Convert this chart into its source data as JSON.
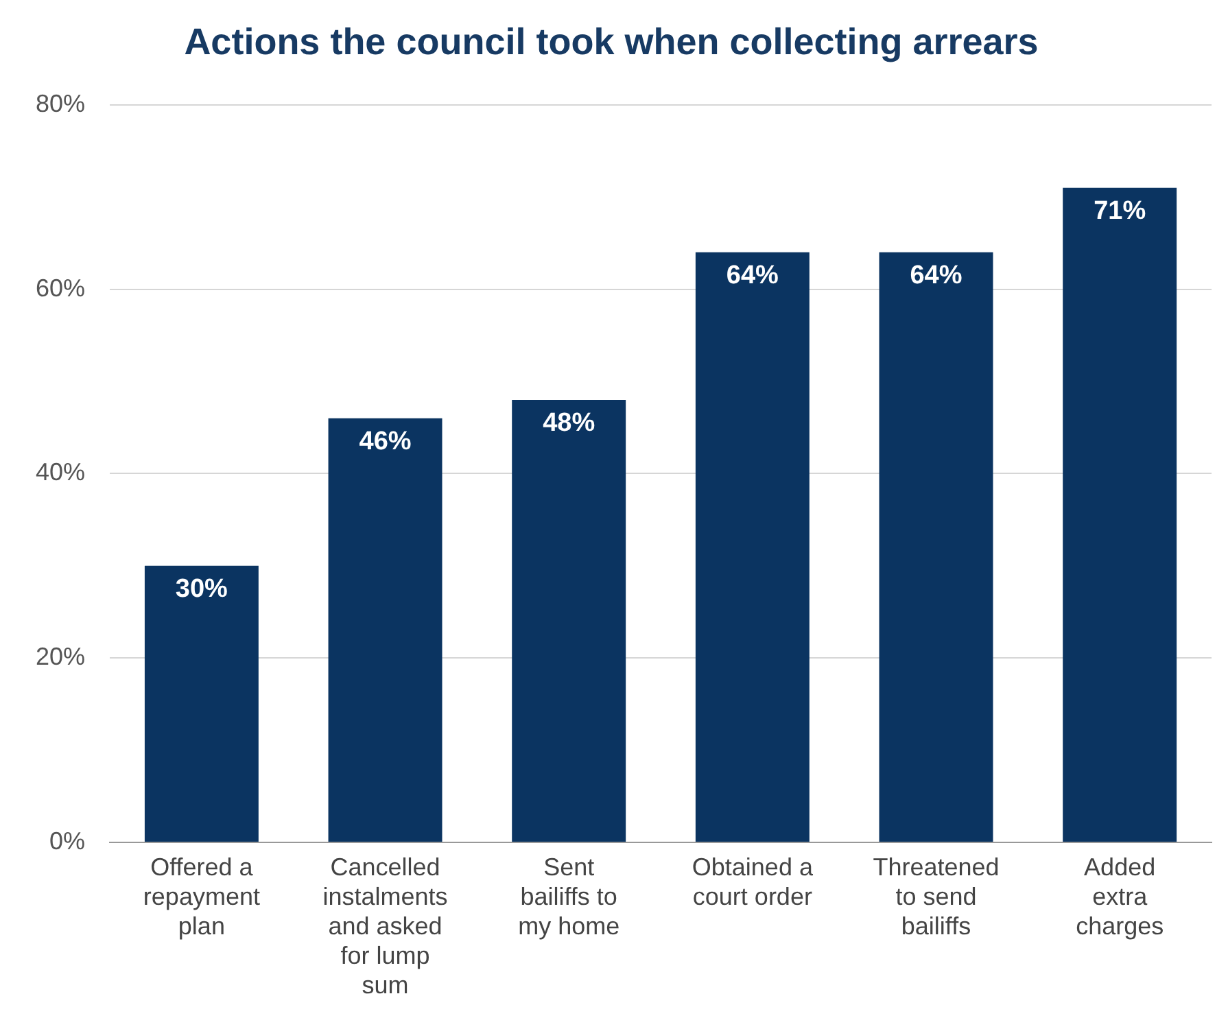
{
  "chart_data": {
    "type": "bar",
    "title": "Actions the council took when collecting arrears",
    "categories": [
      "Offered a repayment plan",
      "Cancelled instalments and asked for lump sum",
      "Sent bailiffs to my home",
      "Obtained a court order",
      "Threatened to send bailiffs",
      "Added extra charges"
    ],
    "values": [
      30,
      46,
      48,
      64,
      64,
      71
    ],
    "color": "#0b3461",
    "value_labels": [
      "30%",
      "46%",
      "48%",
      "64%",
      "64%",
      "71%"
    ],
    "ylim": [
      0,
      80
    ],
    "yticks": [
      {
        "value": 0,
        "label": "0%"
      },
      {
        "value": 20,
        "label": "20%"
      },
      {
        "value": 40,
        "label": "40%"
      },
      {
        "value": 60,
        "label": "60%"
      },
      {
        "value": 80,
        "label": "80%"
      }
    ],
    "grid": "y",
    "legend": false
  }
}
